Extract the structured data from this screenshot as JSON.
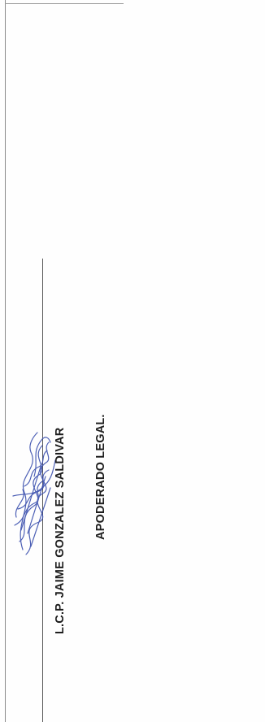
{
  "signature_block": {
    "name": "L.C.P. JAIME GONZALEZ SALDIVAR",
    "title": "APODERADO LEGAL."
  },
  "colors": {
    "ink_blue": "#3a4fae",
    "text": "#1e1e1e"
  }
}
